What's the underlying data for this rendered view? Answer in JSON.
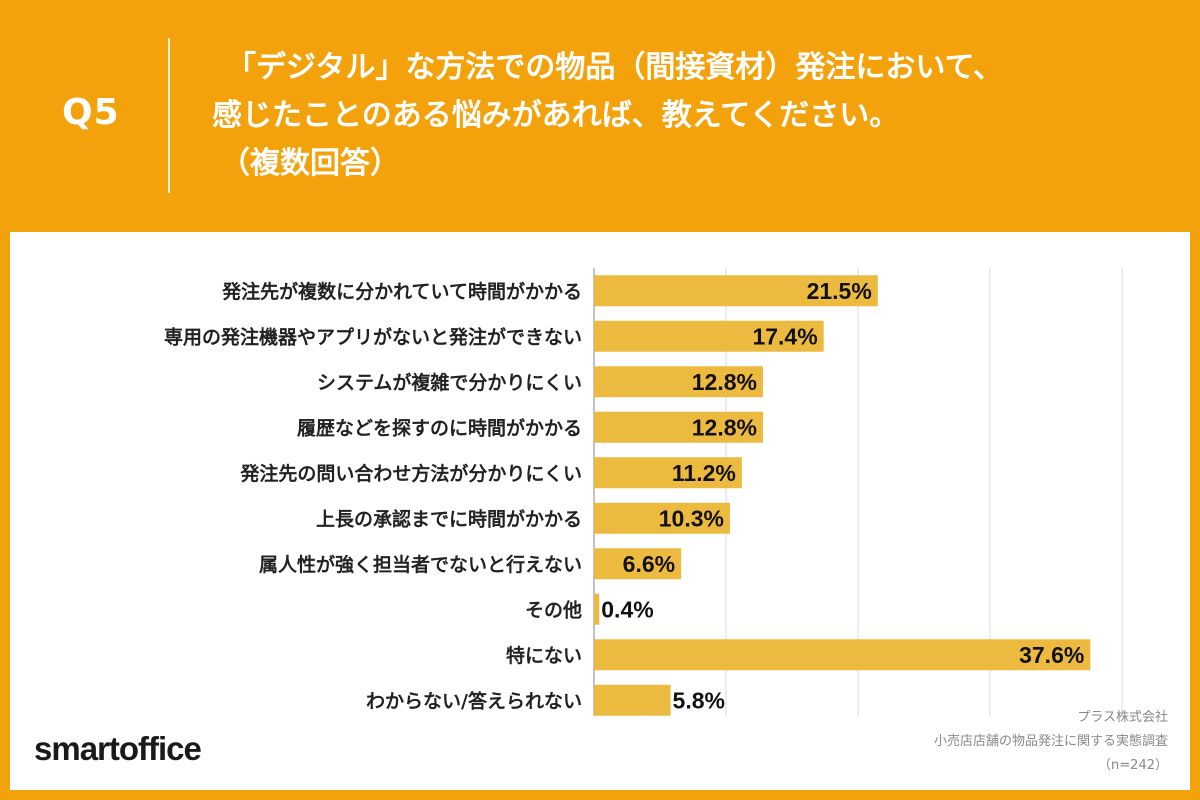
{
  "header": {
    "q_number": "Q5",
    "question_lines": [
      "「デジタル」な方法での物品（間接資材）発注において、",
      "感じたことのある悩みがあれば、教えてください。",
      "（複数回答）"
    ]
  },
  "chart_data": {
    "type": "bar",
    "orientation": "horizontal",
    "categories": [
      "発注先が複数に分かれていて時間がかかる",
      "専用の発注機器やアプリがないと発注ができない",
      "システムが複雑で分かりにくい",
      "履歴などを探すのに時間がかかる",
      "発注先の問い合わせ方法が分かりにくい",
      "上長の承認までに時間がかかる",
      "属人性が強く担当者でないと行えない",
      "その他",
      "特にない",
      "わからない/答えられない"
    ],
    "values": [
      21.5,
      17.4,
      12.8,
      12.8,
      11.2,
      10.3,
      6.6,
      0.4,
      37.6,
      5.8
    ],
    "value_labels": [
      "21.5%",
      "17.4%",
      "12.8%",
      "12.8%",
      "11.2%",
      "10.3%",
      "6.6%",
      "0.4%",
      "37.6%",
      "5.8%"
    ],
    "xlim": [
      0,
      40
    ],
    "grid": true,
    "bar_color": "#EDBA40"
  },
  "footer": {
    "logo": "smartoffice",
    "source_lines": [
      "プラス株式会社",
      "小売店店舗の物品発注に関する実態調査",
      "（n=242）"
    ]
  },
  "colors": {
    "background": "#F4A20C",
    "card": "#FFFFFF",
    "bar": "#EDBA40",
    "grid": "#D9D9D9"
  }
}
